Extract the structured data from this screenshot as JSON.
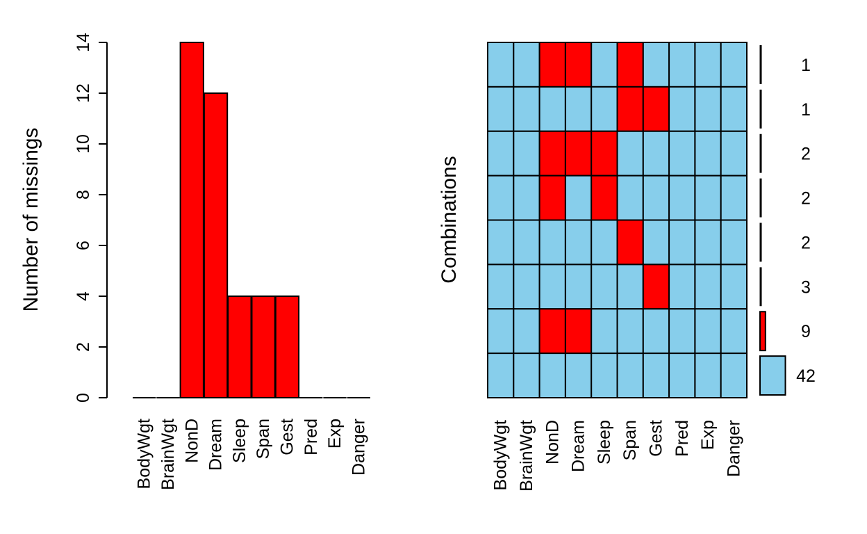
{
  "chart_data": [
    {
      "type": "bar",
      "ylabel": "Number of missings",
      "categories": [
        "BodyWgt",
        "BrainWgt",
        "NonD",
        "Dream",
        "Sleep",
        "Span",
        "Gest",
        "Pred",
        "Exp",
        "Danger"
      ],
      "values": [
        0,
        0,
        14,
        12,
        4,
        4,
        4,
        0,
        0,
        0
      ],
      "ylim": [
        0,
        14
      ],
      "yticks": [
        0,
        2,
        4,
        6,
        8,
        10,
        12,
        14
      ],
      "bar_color": "#ff0000"
    },
    {
      "type": "heatmap",
      "ylabel": "Combinations",
      "columns": [
        "BodyWgt",
        "BrainWgt",
        "NonD",
        "Dream",
        "Sleep",
        "Span",
        "Gest",
        "Pred",
        "Exp",
        "Danger"
      ],
      "rows": [
        [
          0,
          0,
          1,
          1,
          0,
          1,
          0,
          0,
          0,
          0
        ],
        [
          0,
          0,
          0,
          0,
          0,
          1,
          1,
          0,
          0,
          0
        ],
        [
          0,
          0,
          1,
          1,
          1,
          0,
          0,
          0,
          0,
          0
        ],
        [
          0,
          0,
          1,
          0,
          1,
          0,
          0,
          0,
          0,
          0
        ],
        [
          0,
          0,
          0,
          0,
          0,
          1,
          0,
          0,
          0,
          0
        ],
        [
          0,
          0,
          0,
          0,
          0,
          0,
          1,
          0,
          0,
          0
        ],
        [
          0,
          0,
          1,
          1,
          0,
          0,
          0,
          0,
          0,
          0
        ],
        [
          0,
          0,
          0,
          0,
          0,
          0,
          0,
          0,
          0,
          0
        ]
      ],
      "counts": [
        1,
        1,
        2,
        2,
        2,
        3,
        9,
        42
      ],
      "missing_color": "#ff0000",
      "observed_color": "#87ceeb"
    }
  ]
}
